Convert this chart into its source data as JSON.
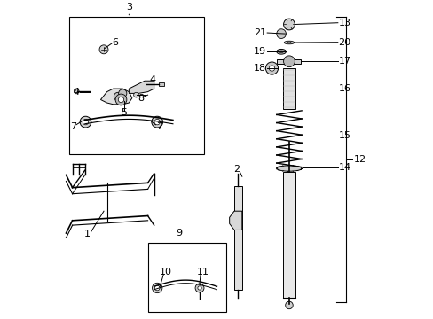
{
  "background_color": "#ffffff",
  "line_color": "#000000",
  "label_fontsize": 8,
  "sx": 0.73
}
